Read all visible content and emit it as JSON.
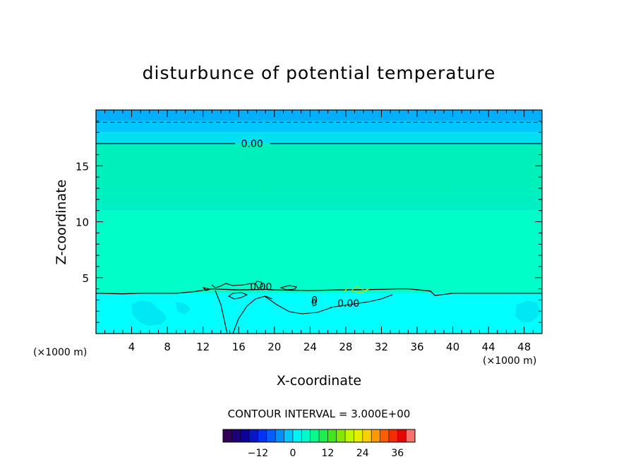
{
  "chart_data": {
    "type": "heatmap",
    "title": "disturbunce of potential temperature",
    "xlabel": "X-coordinate",
    "ylabel": "Z-coordinate",
    "x_unit_label": "(×1000 m)",
    "x_unit_label_right": "(×1000 m)",
    "xlim": [
      0,
      50
    ],
    "ylim": [
      0,
      20
    ],
    "x_ticks": [
      4,
      8,
      12,
      16,
      20,
      24,
      28,
      32,
      36,
      40,
      44,
      48
    ],
    "x_tick_labels": [
      "4",
      "8",
      "12",
      "16",
      "20",
      "24",
      "28",
      "32",
      "36",
      "40",
      "44",
      "48"
    ],
    "y_ticks": [
      5,
      10,
      15
    ],
    "y_tick_labels": [
      "5",
      "10",
      "15"
    ],
    "contour_interval_text": "CONTOUR INTERVAL = 3.000E+00",
    "contour_labels": [
      {
        "text": "0.00",
        "x": 17.5,
        "y": 17.0
      },
      {
        "text": "0.00",
        "x": 18.5,
        "y": 4.2
      },
      {
        "text": "0",
        "x": 24.5,
        "y": 3.0
      },
      {
        "text": "0.00",
        "x": 28.3,
        "y": 2.7
      }
    ],
    "zero_contour_upper_z": 17.0,
    "dashed_contour_z": 18.9,
    "shading_bands": [
      {
        "z0": 19.0,
        "z1": 20.0,
        "color": "#00b0ff"
      },
      {
        "z0": 18.0,
        "z1": 19.0,
        "color": "#00c8ff"
      },
      {
        "z0": 17.0,
        "z1": 18.0,
        "color": "#00e0f0"
      },
      {
        "z0": 11.0,
        "z1": 17.0,
        "color": "#00f0bc"
      },
      {
        "z0": 3.6,
        "z1": 11.0,
        "color": "#00ffc8"
      },
      {
        "z0": 0.0,
        "z1": 3.6,
        "color": "#00ffff"
      }
    ],
    "zero_contour_lower": [
      [
        0,
        3.6
      ],
      [
        3,
        3.55
      ],
      [
        5,
        3.6
      ],
      [
        9,
        3.6
      ],
      [
        11,
        3.75
      ],
      [
        13,
        4.0
      ],
      [
        16,
        3.9
      ],
      [
        19,
        3.95
      ],
      [
        20,
        3.9
      ],
      [
        24,
        3.85
      ],
      [
        27,
        3.9
      ],
      [
        32,
        3.95
      ],
      [
        34,
        4.0
      ],
      [
        35,
        4.0
      ],
      [
        37.5,
        3.8
      ],
      [
        38,
        3.4
      ],
      [
        40,
        3.6
      ],
      [
        44,
        3.6
      ],
      [
        50,
        3.6
      ]
    ],
    "colorbar": {
      "min": -24,
      "max": 42,
      "step": 3,
      "tick_values": [
        -12,
        0,
        12,
        24,
        36
      ],
      "tick_labels": [
        "−12",
        "0",
        "12",
        "24",
        "36"
      ]
    }
  }
}
